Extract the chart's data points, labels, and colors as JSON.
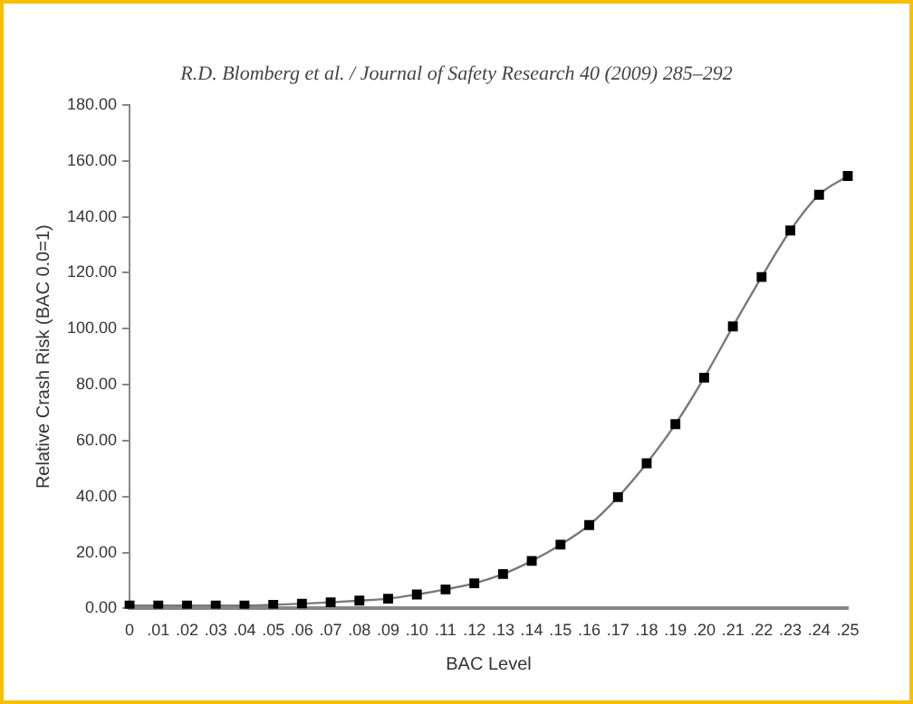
{
  "chart_data": {
    "type": "line",
    "annotations": [
      "R.D. Blomberg et al. / Journal of Safety Research 40 (2009) 285–292"
    ],
    "xlabel": "BAC Level",
    "ylabel": "Relative Crash Risk (BAC 0.0=1)",
    "categories": [
      "0",
      ".01",
      ".02",
      ".03",
      ".04",
      ".05",
      ".06",
      ".07",
      ".08",
      ".09",
      ".10",
      ".11",
      ".12",
      ".13",
      ".14",
      ".15",
      ".16",
      ".17",
      ".18",
      ".19",
      ".20",
      ".21",
      ".22",
      ".23",
      ".24",
      ".25"
    ],
    "series": [
      {
        "color": "#000000",
        "values": [
          1,
          1,
          1,
          1,
          1,
          1.3,
          1.7,
          2.2,
          2.8,
          3.5,
          5,
          6.8,
          9,
          12.3,
          17,
          22.8,
          29.8,
          39.8,
          51.9,
          65.9,
          82.5,
          100.8,
          118.5,
          135.1,
          147.9,
          154.6
        ]
      }
    ],
    "ylim": [
      0,
      180
    ],
    "yticks": [
      {
        "value": 0,
        "label": "0.00"
      },
      {
        "value": 20,
        "label": "20.00"
      },
      {
        "value": 40,
        "label": "40.00"
      },
      {
        "value": 60,
        "label": "60.00"
      },
      {
        "value": 80,
        "label": "80.00"
      },
      {
        "value": 100,
        "label": "100.00"
      },
      {
        "value": 120,
        "label": "120.00"
      },
      {
        "value": 140,
        "label": "140.00"
      },
      {
        "value": 160,
        "label": "160.00"
      },
      {
        "value": 180,
        "label": "180.00"
      }
    ],
    "marker": "square",
    "line_style": "solid",
    "grid": false,
    "legend": false
  }
}
